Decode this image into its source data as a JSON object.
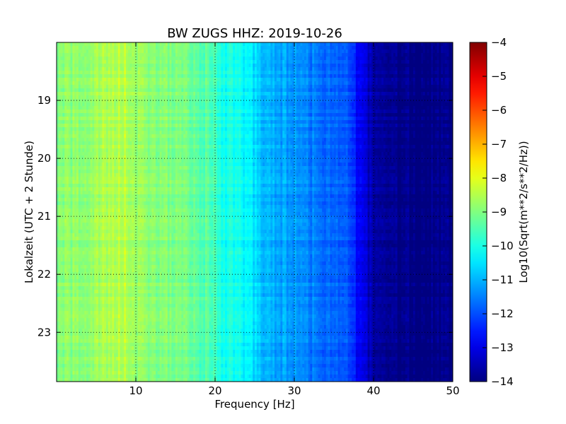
{
  "chart_data": {
    "type": "heatmap",
    "title": "BW ZUGS HHZ: 2019-10-26",
    "xlabel": "Frequency [Hz]",
    "ylabel": "Lokalzeit (UTC + 2 Stunde)",
    "xlim": [
      0,
      50
    ],
    "ylim": [
      18.0,
      23.85
    ],
    "y_inverted": true,
    "x_ticks": [
      10,
      20,
      30,
      40,
      50
    ],
    "y_ticks": [
      19,
      20,
      21,
      22,
      23
    ],
    "grid": true,
    "colormap": "jet",
    "colorbar": {
      "label": "Log10(Sqrt(m**2/s**2/Hz))",
      "range": [
        -14,
        -4
      ],
      "ticks": [
        -4,
        -5,
        -6,
        -7,
        -8,
        -9,
        -10,
        -11,
        -12,
        -13,
        -14
      ]
    },
    "frequency_profile": {
      "frequency_hz": [
        0,
        2,
        4,
        6,
        8,
        9,
        10,
        12,
        14,
        16,
        18,
        20,
        21,
        22,
        24,
        25,
        26,
        28,
        30,
        32,
        34,
        36,
        37.5,
        38,
        39,
        40,
        41,
        42,
        45,
        50
      ],
      "log_amplitude": [
        -9.0,
        -8.9,
        -8.8,
        -8.6,
        -8.4,
        -8.5,
        -8.8,
        -8.9,
        -9.0,
        -9.1,
        -9.3,
        -9.6,
        -10.0,
        -10.1,
        -10.3,
        -10.6,
        -10.9,
        -11.1,
        -11.3,
        -11.5,
        -11.7,
        -11.9,
        -12.2,
        -12.8,
        -13.2,
        -13.6,
        -13.8,
        -13.9,
        -14.0,
        -14.0
      ]
    }
  }
}
